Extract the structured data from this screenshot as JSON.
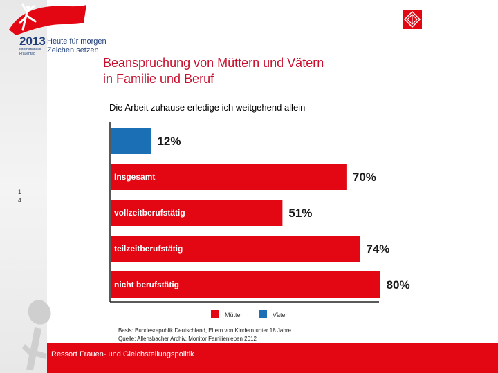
{
  "branding": {
    "year": "2013",
    "year_sub": "Internationaler Frauentag",
    "tagline_line1": "Heute für morgen",
    "tagline_line2": "Zeichen setzen",
    "brand_red": "#e30613",
    "brand_blue": "#1f3e7a"
  },
  "slide": {
    "title_line1": "Beanspruchung von Müttern und Vätern",
    "title_line2": "in Familie und Beruf",
    "page_marker_line1": "1",
    "page_marker_line2": "4"
  },
  "chart_data": {
    "type": "bar",
    "orientation": "horizontal",
    "title": "Die Arbeit zuhause erledige ich weitgehend allein",
    "xlim": [
      0,
      100
    ],
    "bars": [
      {
        "series": "Väter",
        "category": "",
        "value": 12,
        "label": "12%"
      },
      {
        "series": "Mütter",
        "category": "Insgesamt",
        "value": 70,
        "label": "70%"
      },
      {
        "series": "Mütter",
        "category": "vollzeitberufstätig",
        "value": 51,
        "label": "51%"
      },
      {
        "series": "Mütter",
        "category": "teilzeitberufstätig",
        "value": 74,
        "label": "74%"
      },
      {
        "series": "Mütter",
        "category": "nicht berufstätig",
        "value": 80,
        "label": "80%"
      }
    ],
    "legend": [
      {
        "name": "Mütter",
        "color": "#e30613"
      },
      {
        "name": "Väter",
        "color": "#1a6fb5"
      }
    ],
    "legend_position": "bottom"
  },
  "notes": {
    "basis": "Basis: Bundesrepublik Deutschland, Eltern von Kindern unter 18 Jahre",
    "source": "Quelle: Allensbacher Archiv, Monitor Familienleben 2012"
  },
  "footer": {
    "text": "Ressort Frauen- und Gleichstellungspolitik"
  }
}
